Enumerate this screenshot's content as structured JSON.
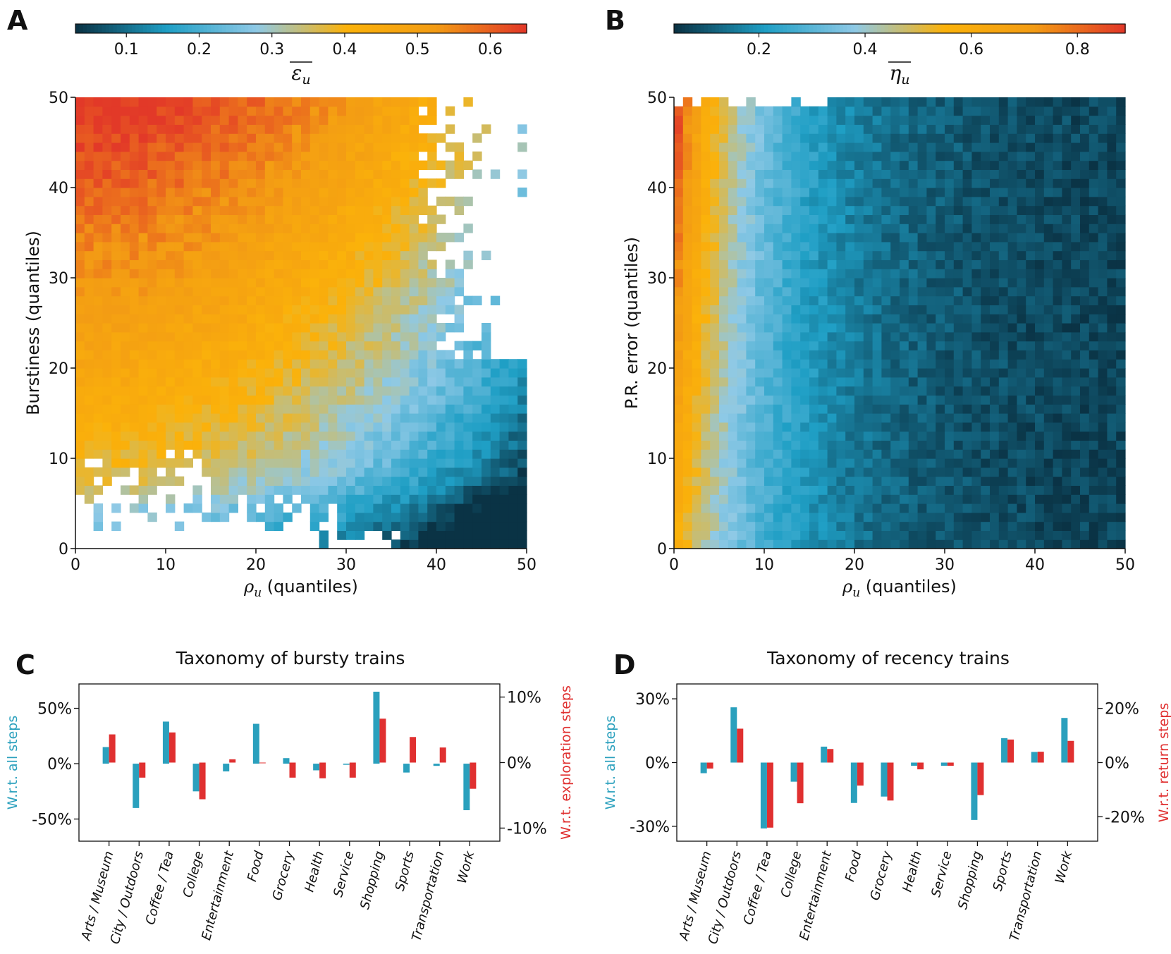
{
  "panels": {
    "A": {
      "letter": "A"
    },
    "B": {
      "letter": "B"
    },
    "C": {
      "letter": "C",
      "title": "Taxonomy of bursty trains"
    },
    "D": {
      "letter": "D",
      "title": "Taxonomy of recency trains"
    }
  },
  "colors": {
    "colormap": [
      "#0a3345",
      "#1f9fc5",
      "#8ec9e6",
      "#fbb20a",
      "#f39c14",
      "#e23928"
    ],
    "bar_left": "#2aa0bd",
    "bar_right": "#e03030",
    "empty": "#ffffff"
  },
  "chart_data": [
    {
      "type": "heatmap",
      "panel": "A",
      "xlabel_symbol": "ρ",
      "xlabel_sub": "u",
      "xlabel_text": " (quantiles)",
      "ylabel": "Burstiness (quantiles)",
      "x_ticks": [
        "0",
        "10",
        "20",
        "30",
        "40",
        "50"
      ],
      "y_ticks": [
        "0",
        "10",
        "20",
        "30",
        "40",
        "50"
      ],
      "xlim": [
        0,
        50
      ],
      "ylim": [
        0,
        50
      ],
      "grid_size": 50,
      "colorbar": {
        "label_symbol": "ε",
        "label_sub": "u",
        "range": [
          0.03,
          0.65
        ],
        "ticks": [
          "0.1",
          "0.2",
          "0.3",
          "0.4",
          "0.5",
          "0.6"
        ],
        "tick_values": [
          0.1,
          0.2,
          0.3,
          0.4,
          0.5,
          0.6
        ]
      },
      "trend": "values highest (~0.6) at low rho and high burstiness (top-left), decreasing to ~0.03 at high rho and low burstiness (bottom-right); sparse empty cells along top-right and bottom-left"
    },
    {
      "type": "heatmap",
      "panel": "B",
      "xlabel_symbol": "ρ",
      "xlabel_sub": "u",
      "xlabel_text": " (quantiles)",
      "ylabel": "P.R. error (quantiles)",
      "x_ticks": [
        "0",
        "10",
        "20",
        "30",
        "40",
        "50"
      ],
      "y_ticks": [
        "0",
        "10",
        "20",
        "30",
        "40",
        "50"
      ],
      "xlim": [
        0,
        50
      ],
      "ylim": [
        0,
        50
      ],
      "grid_size": 50,
      "colorbar": {
        "label_symbol": "η",
        "label_sub": "u",
        "range": [
          0.04,
          0.89
        ],
        "ticks": [
          "0.2",
          "0.4",
          "0.6",
          "0.8"
        ],
        "tick_values": [
          0.2,
          0.4,
          0.6,
          0.8
        ]
      },
      "trend": "values highest (~0.85) at rho near 0 and high P.R. error, decreasing with rho to ~0.05 at rho = 50"
    },
    {
      "type": "bar",
      "panel": "C",
      "title": "Taxonomy of bursty trains",
      "categories": [
        "Arts / Museum",
        "City / Outdoors",
        "Coffee / Tea",
        "College",
        "Entertainment",
        "Food",
        "Grocery",
        "Health",
        "Service",
        "Shopping",
        "Sports",
        "Transportation",
        "Work"
      ],
      "ylabel_left": "W.r.t. all steps",
      "ylabel_right": "W.r.t. exploration steps",
      "left_ticks": [
        "-50%",
        "0%",
        "50%"
      ],
      "left_tick_values": [
        -50,
        0,
        50
      ],
      "right_ticks": [
        "-10%",
        "0%",
        "10%"
      ],
      "right_tick_values": [
        -10,
        0,
        10
      ],
      "ylim_left": [
        -70,
        72
      ],
      "ylim_right": [
        -12,
        12
      ],
      "series": [
        {
          "name": "W.r.t. all steps",
          "axis": "left",
          "values": [
            15,
            -40,
            38,
            -25,
            -7,
            36,
            5,
            -6,
            -1,
            65,
            -8,
            -2,
            -42
          ]
        },
        {
          "name": "W.r.t. exploration steps",
          "axis": "right",
          "values": [
            4.3,
            -2.3,
            4.6,
            -5.6,
            0.5,
            -0.1,
            -2.3,
            -2.4,
            -2.3,
            6.7,
            3.9,
            2.3,
            -4.0
          ]
        }
      ]
    },
    {
      "type": "bar",
      "panel": "D",
      "title": "Taxonomy of recency trains",
      "categories": [
        "Arts / Museum",
        "City / Outdoors",
        "Coffee / Tea",
        "College",
        "Entertainment",
        "Food",
        "Grocery",
        "Health",
        "Service",
        "Shopping",
        "Sports",
        "Transportation",
        "Work"
      ],
      "ylabel_left": "W.r.t. all steps",
      "ylabel_right": "W.r.t. return steps",
      "left_ticks": [
        "-30%",
        "0%",
        "30%"
      ],
      "left_tick_values": [
        -30,
        0,
        30
      ],
      "right_ticks": [
        "-20%",
        "0%",
        "20%"
      ],
      "right_tick_values": [
        -20,
        0,
        20
      ],
      "ylim_left": [
        -37,
        37
      ],
      "ylim_right": [
        -29,
        29
      ],
      "series": [
        {
          "name": "W.r.t. all steps",
          "axis": "left",
          "values": [
            -5,
            26,
            -31,
            -9,
            7.5,
            -19,
            -16,
            -1.5,
            -1.5,
            -27,
            11.5,
            5,
            21
          ]
        },
        {
          "name": "W.r.t. return steps",
          "axis": "right",
          "values": [
            -2.2,
            12.5,
            -24,
            -15,
            5,
            -8.5,
            -14,
            -2.5,
            -1.2,
            -12,
            8.5,
            4,
            8
          ]
        }
      ]
    }
  ]
}
